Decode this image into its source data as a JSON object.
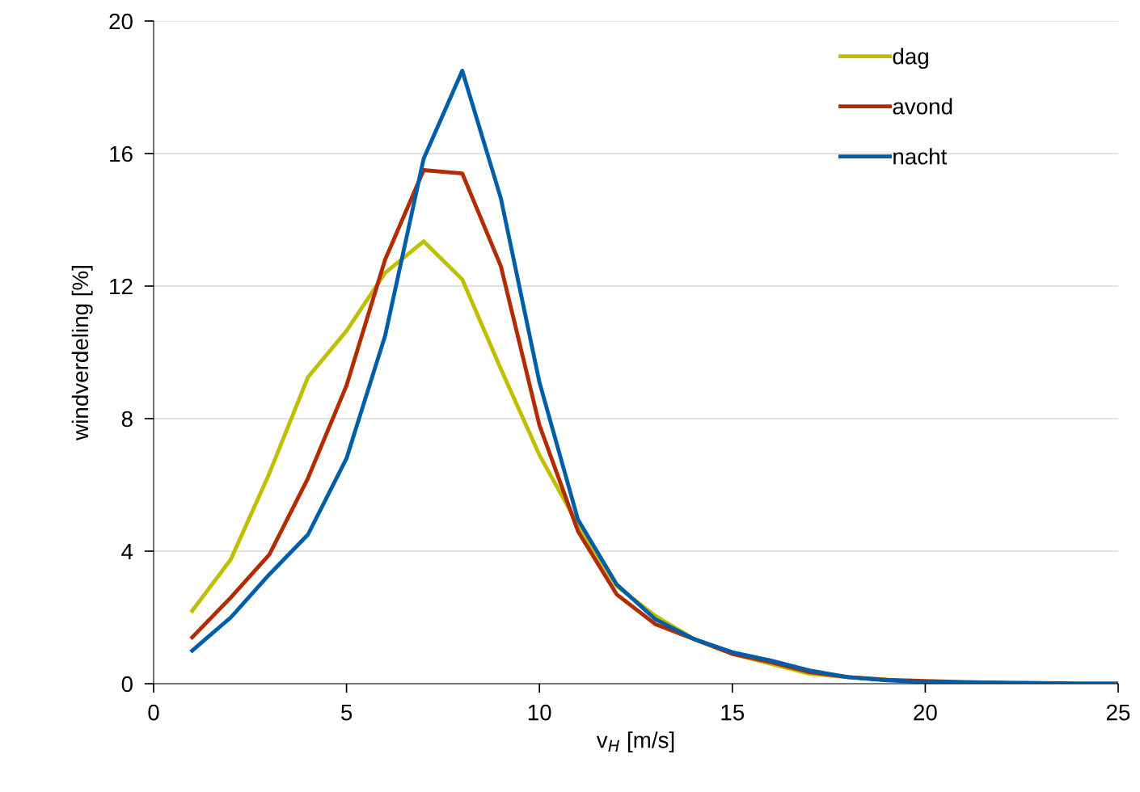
{
  "chart_data": {
    "type": "line",
    "xlabel": "v$_{H}$ [m/s]",
    "ylabel": "windverdeling [%]",
    "x": [
      1,
      2,
      3,
      4,
      5,
      6,
      7,
      8,
      9,
      10,
      11,
      12,
      13,
      14,
      15,
      16,
      17,
      18,
      19,
      20,
      21,
      22,
      23,
      24,
      25
    ],
    "xlim": [
      0,
      25
    ],
    "xticks": [
      0,
      5,
      10,
      15,
      20,
      25
    ],
    "ylim": [
      0,
      20
    ],
    "yticks": [
      0,
      4,
      8,
      12,
      16,
      20
    ],
    "grid": "y",
    "legend": "top right",
    "line_style": "solid",
    "marker": "none",
    "series": [
      {
        "name": "dag",
        "color": "#bfbf00",
        "values": [
          2.2,
          3.75,
          6.35,
          9.25,
          10.65,
          12.4,
          13.35,
          12.2,
          9.5,
          6.9,
          4.8,
          2.95,
          2.05,
          1.35,
          0.9,
          0.6,
          0.3,
          0.2,
          0.12,
          null,
          null,
          null,
          null,
          null,
          null
        ]
      },
      {
        "name": "avond",
        "color": "#b22c00",
        "values": [
          1.4,
          2.6,
          3.9,
          6.2,
          9.0,
          12.8,
          15.5,
          15.4,
          12.6,
          7.8,
          4.6,
          2.7,
          1.8,
          1.35,
          0.9,
          0.65,
          0.35,
          0.2,
          0.12,
          0.08,
          0.05,
          0.03,
          null,
          null,
          null
        ]
      },
      {
        "name": "nacht",
        "color": "#005ea8",
        "values": [
          1.0,
          2.0,
          3.3,
          4.5,
          6.8,
          10.5,
          15.85,
          18.5,
          14.65,
          9.1,
          4.95,
          3.0,
          1.95,
          1.35,
          0.95,
          0.7,
          0.4,
          0.2,
          0.1,
          0.05,
          0.04,
          0.03,
          0.02,
          0.01,
          0.01
        ]
      }
    ]
  }
}
